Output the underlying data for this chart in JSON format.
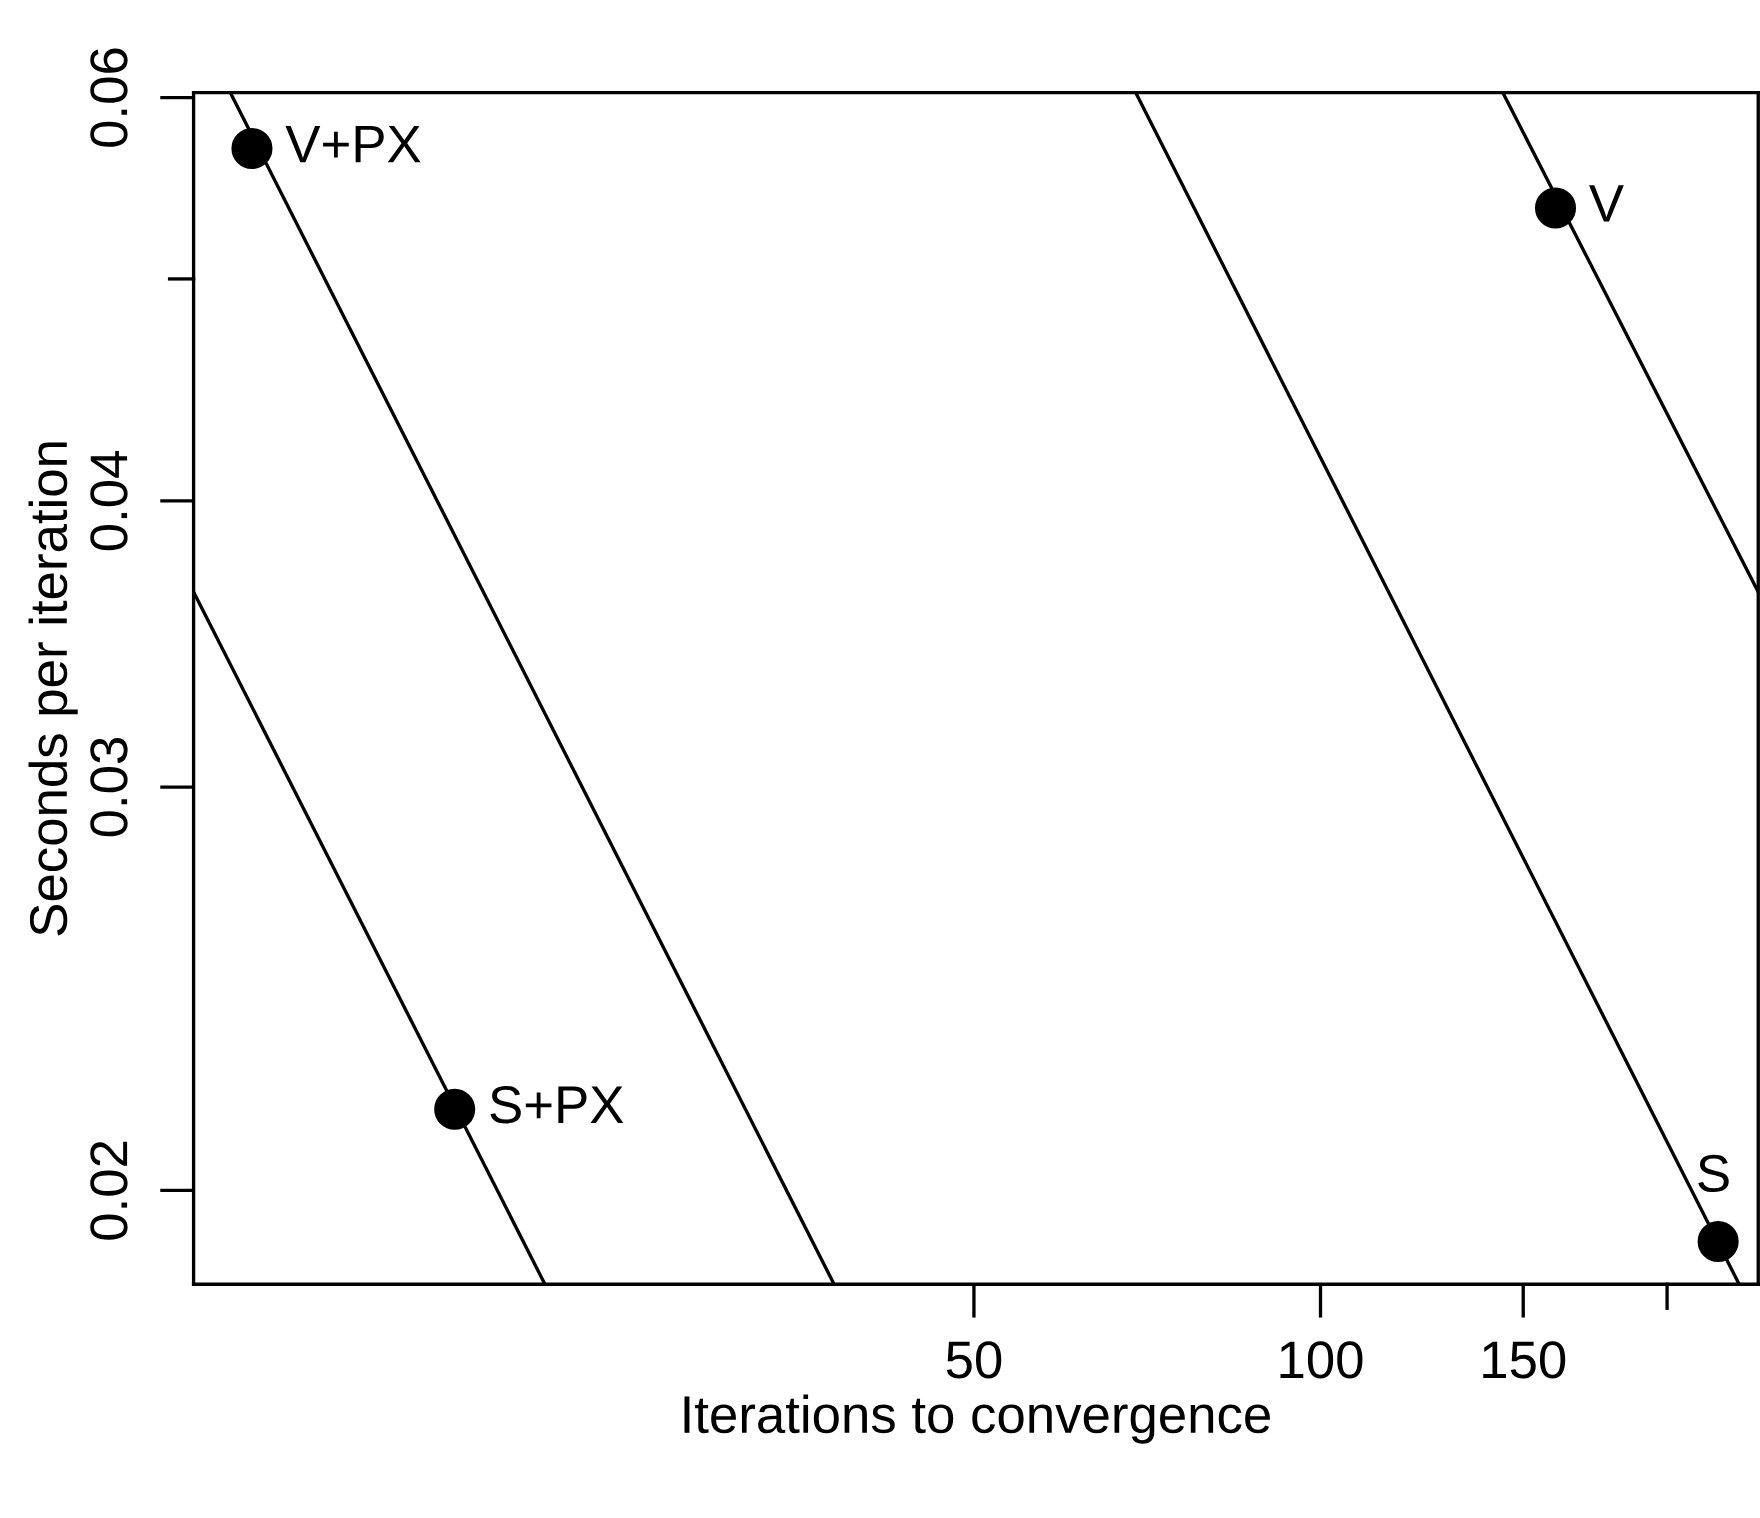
{
  "chart_data": {
    "type": "scatter",
    "xlabel": "Iterations to convergence",
    "ylabel": "Seconds per iteration",
    "log": "xy",
    "grid": false,
    "xlim": [
      10.5,
      240
    ],
    "ylim": [
      0.0182,
      0.0603
    ],
    "xticks": [
      50,
      100,
      150,
      {
        "value": 200,
        "label": null
      }
    ],
    "yticks": [
      0.02,
      0.03,
      0.04,
      {
        "value": 0.05,
        "label": null
      },
      0.06
    ],
    "series": [
      {
        "type": "scatter",
        "marker": "circle",
        "color": "#000000",
        "x": [
          11.8,
          17.7,
          160,
          221.5
        ],
        "values": [
          0.057,
          0.0217,
          0.0537,
          0.019
        ]
      },
      {
        "type": "line",
        "color": "#000000",
        "line_style": "solid",
        "x": [
          10.5,
          21.2
        ],
        "values": [
          0.0365,
          0.0182
        ]
      },
      {
        "type": "line",
        "color": "#000000",
        "line_style": "solid",
        "x": [
          11.3,
          37.8
        ],
        "values": [
          0.0603,
          0.0182
        ]
      },
      {
        "type": "line",
        "color": "#000000",
        "line_style": "solid",
        "x": [
          69.1,
          231
        ],
        "values": [
          0.0603,
          0.0182
        ]
      },
      {
        "type": "line",
        "color": "#000000",
        "line_style": "solid",
        "x": [
          144,
          240
        ],
        "values": [
          0.0603,
          0.0365
        ]
      }
    ],
    "annotations": [
      {
        "text": "V+PX",
        "x": 11.8,
        "y": 0.057
      },
      {
        "text": "S+PX",
        "x": 17.7,
        "y": 0.0217
      },
      {
        "text": "V",
        "x": 160,
        "y": 0.0537
      },
      {
        "text": "S",
        "x": 221.5,
        "y": 0.019
      }
    ]
  }
}
